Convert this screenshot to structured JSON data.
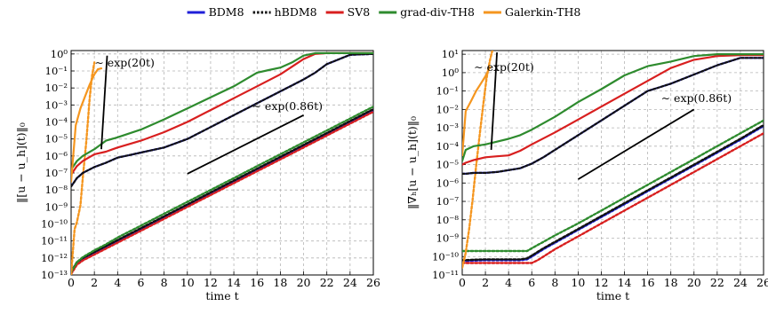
{
  "legend": {
    "placement": "top-center",
    "entries": [
      {
        "label": "BDM8",
        "color": "#1f1fd8",
        "dash": "solid"
      },
      {
        "label": "hBDM8",
        "color": "#000000",
        "dash": "dotted"
      },
      {
        "label": "SV8",
        "color": "#d81f1f",
        "dash": "solid"
      },
      {
        "label": "grad-div-TH8",
        "color": "#2e8b2e",
        "dash": "solid"
      },
      {
        "label": "Galerkin-TH8",
        "color": "#f5961f",
        "dash": "solid"
      }
    ]
  },
  "chart_data": [
    {
      "type": "line",
      "y_scale": "log",
      "grid": true,
      "xlabel": "time t",
      "ylabel": "‖[u − u_h](t)‖₀",
      "xlim": [
        0,
        26
      ],
      "ylim_exp": [
        -13,
        0.2
      ],
      "xticks": [
        0,
        2,
        4,
        6,
        8,
        10,
        12,
        14,
        16,
        18,
        20,
        22,
        24,
        26
      ],
      "yticks_exp": [
        -13,
        -12,
        -11,
        -10,
        -9,
        -8,
        -7,
        -6,
        -5,
        -4,
        -3,
        -2,
        -1,
        0
      ],
      "annotations": [
        {
          "text": "∼ exp(20t)",
          "at": [
            4.6,
            -0.75
          ]
        },
        {
          "text": "∼ exp(0.86t)",
          "at": [
            18.6,
            -3.3
          ]
        }
      ],
      "reference_lines": [
        {
          "from": [
            2.6,
            -5.6
          ],
          "to": [
            3.1,
            -0.1
          ]
        },
        {
          "from": [
            10.0,
            -7.05
          ],
          "to": [
            20.0,
            -3.6
          ]
        }
      ],
      "series": [
        {
          "name": "BDM8",
          "x": [
            0,
            0.5,
            1,
            2,
            3,
            4,
            6,
            8,
            10,
            12,
            14,
            16,
            18,
            20,
            22,
            24,
            26
          ],
          "y": [
            -12.9,
            -12.35,
            -12.1,
            -11.75,
            -11.4,
            -11.05,
            -10.35,
            -9.65,
            -8.95,
            -8.25,
            -7.55,
            -6.85,
            -6.15,
            -5.45,
            -4.75,
            -4.05,
            -3.35
          ]
        },
        {
          "name": "hBDM8",
          "x": [
            0,
            0.5,
            1,
            2,
            3,
            4,
            6,
            8,
            10,
            12,
            14,
            16,
            18,
            20,
            22,
            24,
            26
          ],
          "y": [
            -12.8,
            -12.25,
            -12.0,
            -11.65,
            -11.3,
            -10.95,
            -10.25,
            -9.55,
            -8.85,
            -8.15,
            -7.45,
            -6.75,
            -6.05,
            -5.35,
            -4.65,
            -3.95,
            -3.25
          ]
        },
        {
          "name": "SV8",
          "x": [
            0,
            0.5,
            1,
            2,
            3,
            4,
            6,
            8,
            10,
            12,
            14,
            16,
            18,
            20,
            22,
            24,
            26
          ],
          "y": [
            -12.95,
            -12.4,
            -12.15,
            -11.8,
            -11.45,
            -11.1,
            -10.4,
            -9.7,
            -9.0,
            -8.3,
            -7.6,
            -6.9,
            -6.2,
            -5.5,
            -4.8,
            -4.1,
            -3.4
          ]
        },
        {
          "name": "grad-div-TH8",
          "x": [
            0,
            0.5,
            1,
            2,
            3,
            4,
            6,
            8,
            10,
            12,
            14,
            16,
            18,
            20,
            22,
            24,
            26
          ],
          "y": [
            -12.85,
            -12.25,
            -11.95,
            -11.55,
            -11.2,
            -10.8,
            -10.1,
            -9.4,
            -8.7,
            -8.0,
            -7.3,
            -6.6,
            -5.9,
            -5.2,
            -4.5,
            -3.8,
            -3.1
          ]
        },
        {
          "name": "Galerkin-TH8",
          "x": [
            0,
            0.3,
            0.5,
            0.8,
            1.0,
            1.3,
            1.6,
            1.8,
            2.0
          ],
          "y": [
            -13.0,
            -10.3,
            -9.9,
            -8.9,
            -7.3,
            -5.2,
            -2.6,
            -1.3,
            -0.5
          ]
        },
        {
          "name": "BDM8",
          "x": [
            0,
            0.5,
            1,
            2,
            3,
            4,
            5,
            6,
            8,
            10,
            12,
            14,
            16,
            18,
            20,
            21,
            22,
            24,
            26
          ],
          "y": [
            -7.8,
            -7.3,
            -7.0,
            -6.65,
            -6.4,
            -6.1,
            -5.95,
            -5.8,
            -5.5,
            -5.0,
            -4.3,
            -3.6,
            -2.9,
            -2.2,
            -1.5,
            -1.1,
            -0.6,
            -0.05,
            0.0
          ]
        },
        {
          "name": "hBDM8",
          "x": [
            0,
            0.5,
            1,
            2,
            3,
            4,
            5,
            6,
            8,
            10,
            12,
            14,
            16,
            18,
            20,
            21,
            22,
            24,
            26
          ],
          "y": [
            -7.8,
            -7.3,
            -7.0,
            -6.65,
            -6.4,
            -6.1,
            -5.95,
            -5.8,
            -5.5,
            -5.0,
            -4.3,
            -3.6,
            -2.9,
            -2.2,
            -1.5,
            -1.1,
            -0.6,
            -0.05,
            0.0
          ]
        },
        {
          "name": "SV8",
          "x": [
            0,
            0.5,
            1,
            2,
            3,
            4,
            6,
            8,
            10,
            12,
            14,
            16,
            18,
            19,
            20,
            21,
            22,
            24,
            26
          ],
          "y": [
            -7.1,
            -6.6,
            -6.3,
            -5.9,
            -5.75,
            -5.5,
            -5.1,
            -4.6,
            -4.0,
            -3.3,
            -2.6,
            -1.9,
            -1.2,
            -0.75,
            -0.3,
            0.0,
            0.05,
            0.05,
            0.05
          ]
        },
        {
          "name": "grad-div-TH8",
          "x": [
            0,
            0.5,
            1,
            2,
            3,
            4,
            6,
            8,
            10,
            12,
            14,
            16,
            17,
            18,
            19,
            20,
            21,
            22,
            24,
            26
          ],
          "y": [
            -6.8,
            -6.3,
            -6.0,
            -5.6,
            -5.1,
            -4.9,
            -4.45,
            -3.85,
            -3.2,
            -2.55,
            -1.9,
            -1.1,
            -0.95,
            -0.8,
            -0.5,
            -0.1,
            0.05,
            0.05,
            0.05,
            0.05
          ]
        },
        {
          "name": "Galerkin-TH8",
          "x": [
            0,
            0.4,
            0.8,
            1.2,
            1.6,
            2.0,
            2.3,
            2.6
          ],
          "y": [
            -7.5,
            -4.2,
            -3.2,
            -2.5,
            -1.8,
            -1.2,
            -0.9,
            -0.85
          ]
        }
      ]
    },
    {
      "type": "line",
      "y_scale": "log",
      "grid": true,
      "xlabel": "time t",
      "ylabel": "‖∇ₕ[u − u_h](t)‖₀",
      "xlim": [
        0,
        26
      ],
      "ylim_exp": [
        -11,
        1.2
      ],
      "xticks": [
        0,
        2,
        4,
        6,
        8,
        10,
        12,
        14,
        16,
        18,
        20,
        22,
        24,
        26
      ],
      "yticks_exp": [
        -11,
        -10,
        -9,
        -8,
        -7,
        -6,
        -5,
        -4,
        -3,
        -2,
        -1,
        0,
        1
      ],
      "annotations": [
        {
          "text": "∼ exp(20t)",
          "at": [
            3.6,
            0.1
          ]
        },
        {
          "text": "∼ exp(0.86t)",
          "at": [
            20.2,
            -1.6
          ]
        }
      ],
      "reference_lines": [
        {
          "from": [
            2.5,
            -4.2
          ],
          "to": [
            3.0,
            1.1
          ]
        },
        {
          "from": [
            10.0,
            -5.8
          ],
          "to": [
            20.0,
            -2.0
          ]
        }
      ],
      "series": [
        {
          "name": "BDM8",
          "x": [
            0,
            1,
            2,
            3,
            4,
            5,
            5.6,
            6,
            7,
            8,
            10,
            12,
            14,
            16,
            18,
            20,
            22,
            24,
            26
          ],
          "y": [
            -10.25,
            -10.22,
            -10.2,
            -10.2,
            -10.2,
            -10.2,
            -10.15,
            -10.0,
            -9.6,
            -9.25,
            -8.55,
            -7.85,
            -7.15,
            -6.45,
            -5.75,
            -5.05,
            -4.35,
            -3.65,
            -2.9
          ]
        },
        {
          "name": "hBDM8",
          "x": [
            0,
            1,
            2,
            3,
            4,
            5,
            5.6,
            6,
            7,
            8,
            10,
            12,
            14,
            16,
            18,
            20,
            22,
            24,
            26
          ],
          "y": [
            -10.2,
            -10.17,
            -10.15,
            -10.15,
            -10.15,
            -10.15,
            -10.1,
            -9.95,
            -9.55,
            -9.2,
            -8.5,
            -7.8,
            -7.1,
            -6.4,
            -5.7,
            -5.0,
            -4.3,
            -3.6,
            -2.85
          ]
        },
        {
          "name": "SV8",
          "x": [
            0,
            1,
            2,
            3,
            4,
            5,
            6,
            6.5,
            7,
            8,
            10,
            12,
            14,
            16,
            18,
            20,
            22,
            24,
            26
          ],
          "y": [
            -10.35,
            -10.35,
            -10.35,
            -10.35,
            -10.35,
            -10.35,
            -10.35,
            -10.2,
            -10.0,
            -9.6,
            -8.9,
            -8.2,
            -7.5,
            -6.8,
            -6.1,
            -5.4,
            -4.7,
            -4.0,
            -3.3
          ]
        },
        {
          "name": "grad-div-TH8",
          "x": [
            0,
            1,
            2,
            3,
            4,
            5,
            5.6,
            6,
            7,
            8,
            10,
            12,
            14,
            16,
            18,
            20,
            22,
            24,
            26
          ],
          "y": [
            -9.7,
            -9.7,
            -9.7,
            -9.7,
            -9.7,
            -9.7,
            -9.7,
            -9.55,
            -9.2,
            -8.85,
            -8.2,
            -7.5,
            -6.8,
            -6.1,
            -5.4,
            -4.7,
            -4.0,
            -3.3,
            -2.6
          ]
        },
        {
          "name": "Galerkin-TH8",
          "x": [
            0,
            0.3,
            0.6,
            0.9,
            1.2,
            1.5,
            1.8,
            2.1,
            2.4,
            2.6
          ],
          "y": [
            -10.6,
            -9.8,
            -8.5,
            -6.9,
            -5.1,
            -3.4,
            -1.8,
            -0.3,
            0.7,
            1.2
          ]
        },
        {
          "name": "BDM8",
          "x": [
            0,
            0.3,
            1,
            2,
            3,
            4,
            5,
            6,
            7,
            8,
            10,
            12,
            14,
            16,
            17,
            18,
            20,
            22,
            24,
            26
          ],
          "y": [
            -5.5,
            -5.5,
            -5.45,
            -5.45,
            -5.4,
            -5.3,
            -5.2,
            -4.95,
            -4.6,
            -4.2,
            -3.4,
            -2.6,
            -1.8,
            -1.0,
            -0.8,
            -0.6,
            -0.1,
            0.4,
            0.8,
            0.8
          ]
        },
        {
          "name": "hBDM8",
          "x": [
            0,
            0.3,
            1,
            2,
            3,
            4,
            5,
            6,
            7,
            8,
            10,
            12,
            14,
            16,
            17,
            18,
            20,
            22,
            24,
            26
          ],
          "y": [
            -5.5,
            -5.5,
            -5.45,
            -5.45,
            -5.4,
            -5.3,
            -5.2,
            -4.95,
            -4.6,
            -4.2,
            -3.4,
            -2.6,
            -1.8,
            -1.0,
            -0.8,
            -0.6,
            -0.1,
            0.4,
            0.8,
            0.8
          ]
        },
        {
          "name": "SV8",
          "x": [
            0,
            0.3,
            1,
            2,
            3,
            4,
            5,
            6,
            8,
            10,
            12,
            14,
            16,
            18,
            20,
            22,
            24,
            26
          ],
          "y": [
            -5.0,
            -4.9,
            -4.75,
            -4.6,
            -4.55,
            -4.5,
            -4.25,
            -3.9,
            -3.25,
            -2.55,
            -1.85,
            -1.15,
            -0.45,
            0.25,
            0.7,
            0.9,
            0.95,
            0.95
          ]
        },
        {
          "name": "grad-div-TH8",
          "x": [
            0,
            0.3,
            1,
            2,
            3,
            4,
            5,
            6,
            8,
            10,
            12,
            14,
            16,
            18,
            20,
            22,
            24,
            26
          ],
          "y": [
            -4.8,
            -4.2,
            -4.0,
            -3.9,
            -3.75,
            -3.6,
            -3.4,
            -3.1,
            -2.4,
            -1.6,
            -0.9,
            -0.15,
            0.35,
            0.6,
            0.9,
            1.0,
            1.0,
            1.0
          ]
        },
        {
          "name": "Galerkin-TH8",
          "x": [
            0,
            0.3,
            0.8,
            1.2,
            1.6,
            2.0,
            2.4
          ],
          "y": [
            -4.5,
            -2.1,
            -1.5,
            -1.0,
            -0.6,
            -0.2,
            0.3
          ]
        }
      ]
    }
  ],
  "series_style": [
    {
      "key": "BDM8",
      "color": "#1f1fd8",
      "dash": "solid"
    },
    {
      "key": "hBDM8",
      "color": "#111111",
      "dash": "dotted"
    },
    {
      "key": "SV8",
      "color": "#d81f1f",
      "dash": "solid"
    },
    {
      "key": "grad-div-TH8",
      "color": "#2e8b2e",
      "dash": "solid"
    },
    {
      "key": "Galerkin-TH8",
      "color": "#f5961f",
      "dash": "solid"
    }
  ],
  "lower_group_dash": "dotted"
}
